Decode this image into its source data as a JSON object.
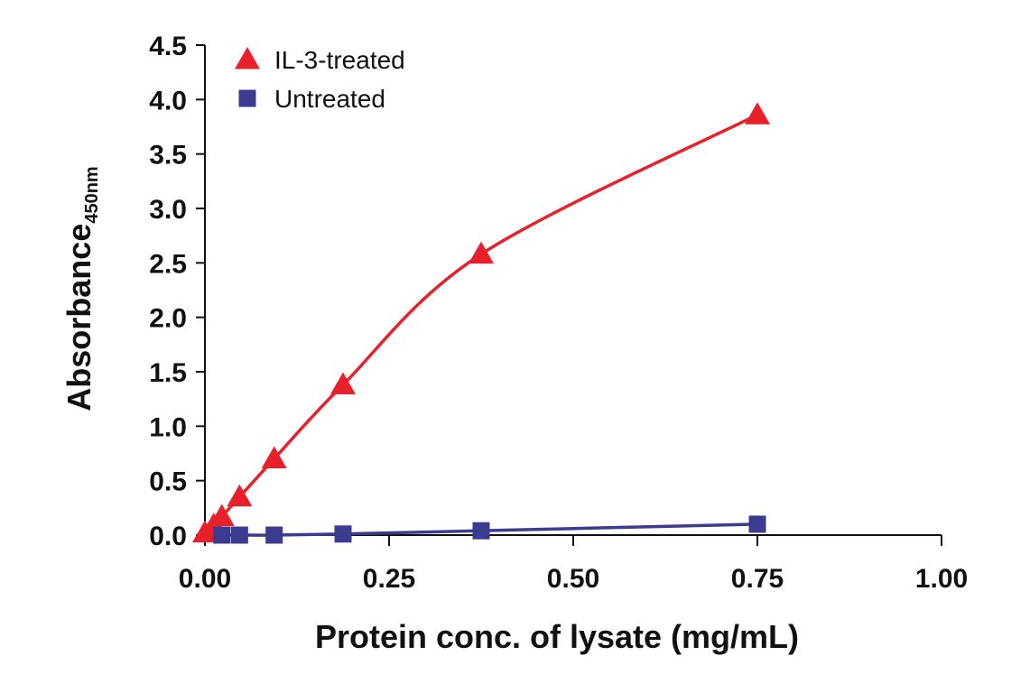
{
  "chart_data": {
    "type": "line",
    "title": "",
    "xlabel": "Protein conc. of lysate (mg/mL)",
    "ylabel_main": "Absorbance",
    "ylabel_sub": "450nm",
    "xlim": [
      0,
      1.0
    ],
    "ylim": [
      0,
      4.5
    ],
    "x_ticks": [
      0,
      0.25,
      0.5,
      0.75,
      1.0
    ],
    "x_tick_labels": [
      "0.00",
      "0.25",
      "0.50",
      "0.75",
      "1.00"
    ],
    "y_ticks": [
      0,
      0.5,
      1.0,
      1.5,
      2.0,
      2.5,
      3.0,
      3.5,
      4.0,
      4.5
    ],
    "y_tick_labels": [
      "0.0",
      "0.5",
      "1.0",
      "1.5",
      "2.0",
      "2.5",
      "3.0",
      "3.5",
      "4.0",
      "4.5"
    ],
    "grid": false,
    "legend_position": "top-left",
    "series": [
      {
        "name": "IL-3-treated",
        "marker": "triangle",
        "color": "#e8202a",
        "x": [
          0.0,
          0.012,
          0.023,
          0.047,
          0.094,
          0.1875,
          0.375,
          0.75
        ],
        "y": [
          0.02,
          0.09,
          0.17,
          0.35,
          0.7,
          1.38,
          2.58,
          3.86
        ]
      },
      {
        "name": "Untreated",
        "marker": "square",
        "color": "#3b3b8f",
        "x": [
          0.023,
          0.047,
          0.094,
          0.1875,
          0.375,
          0.75
        ],
        "y": [
          0.0,
          0.0,
          0.0,
          0.01,
          0.04,
          0.1
        ]
      }
    ]
  }
}
